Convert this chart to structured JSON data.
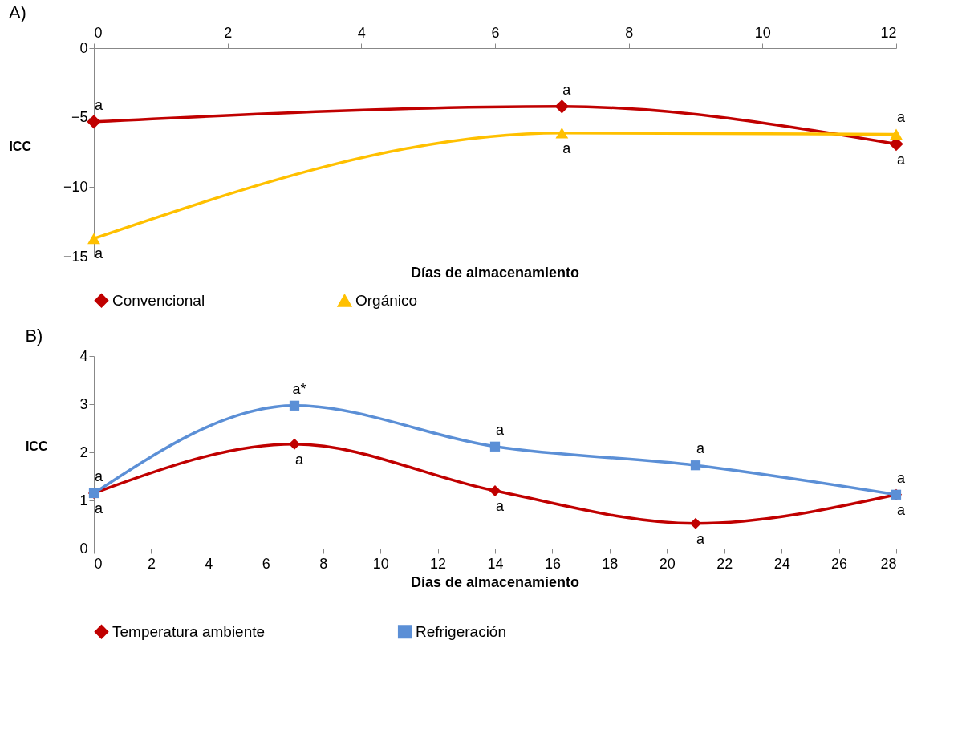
{
  "chart_data": [
    {
      "type": "line",
      "title": "A)",
      "xlabel": "Días de almacenamiento",
      "ylabel": "ICC",
      "x": [
        0,
        7,
        12
      ],
      "xlim": [
        0,
        12
      ],
      "xticks": [
        0,
        2,
        4,
        6,
        8,
        10,
        12
      ],
      "ylim": [
        -15,
        0
      ],
      "yticks": [
        -15,
        -10,
        -5,
        0
      ],
      "grid": false,
      "legend": "bottom",
      "line_style": "solid",
      "series": [
        {
          "name": "Convencional",
          "color": "#c00000",
          "marker": "diamond",
          "values": [
            -5.3,
            -4.2,
            -6.9
          ]
        },
        {
          "name": "Orgánico",
          "color": "#ffc000",
          "marker": "triangle",
          "values": [
            -13.7,
            -6.1,
            -6.2
          ]
        }
      ],
      "annotations": [
        {
          "text": "a",
          "x": 0,
          "y": -5.3
        },
        {
          "text": "a",
          "x": 7,
          "y": -4.2
        },
        {
          "text": "a",
          "x": 12,
          "y": -6.9
        },
        {
          "text": "a",
          "x": 0,
          "y": -13.7
        },
        {
          "text": "a",
          "x": 7,
          "y": -6.1
        },
        {
          "text": "a",
          "x": 12,
          "y": -6.2
        }
      ]
    },
    {
      "type": "line",
      "title": "B)",
      "xlabel": "Días de almacenamiento",
      "ylabel": "ICC",
      "x": [
        0,
        7,
        14,
        21,
        28
      ],
      "xlim": [
        0,
        28
      ],
      "xticks": [
        0,
        2,
        4,
        6,
        8,
        10,
        12,
        14,
        16,
        18,
        20,
        22,
        24,
        26,
        28
      ],
      "ylim": [
        0,
        4
      ],
      "yticks": [
        0,
        1,
        2,
        3,
        4
      ],
      "grid": false,
      "legend": "bottom",
      "line_style": "solid",
      "series": [
        {
          "name": "Temperatura ambiente",
          "color": "#c00000",
          "marker": "diamond",
          "values": [
            1.15,
            2.17,
            1.2,
            0.52,
            1.12
          ]
        },
        {
          "name": "Refrigeración",
          "color": "#5b8fd6",
          "marker": "square",
          "values": [
            1.15,
            2.97,
            2.12,
            1.73,
            1.12
          ]
        }
      ],
      "annotations": [
        {
          "text": "a",
          "x": 0,
          "y": 1.15
        },
        {
          "text": "a*",
          "x": 7,
          "y": 2.97
        },
        {
          "text": "a",
          "x": 14,
          "y": 2.12
        },
        {
          "text": "a",
          "x": 21,
          "y": 1.73
        },
        {
          "text": "a",
          "x": 28,
          "y": 1.12
        },
        {
          "text": "a",
          "x": 0,
          "y": 1.15
        },
        {
          "text": "a",
          "x": 7,
          "y": 2.17
        },
        {
          "text": "a",
          "x": 14,
          "y": 1.2
        },
        {
          "text": "a",
          "x": 21,
          "y": 0.52
        },
        {
          "text": "a",
          "x": 28,
          "y": 1.12
        }
      ]
    }
  ]
}
